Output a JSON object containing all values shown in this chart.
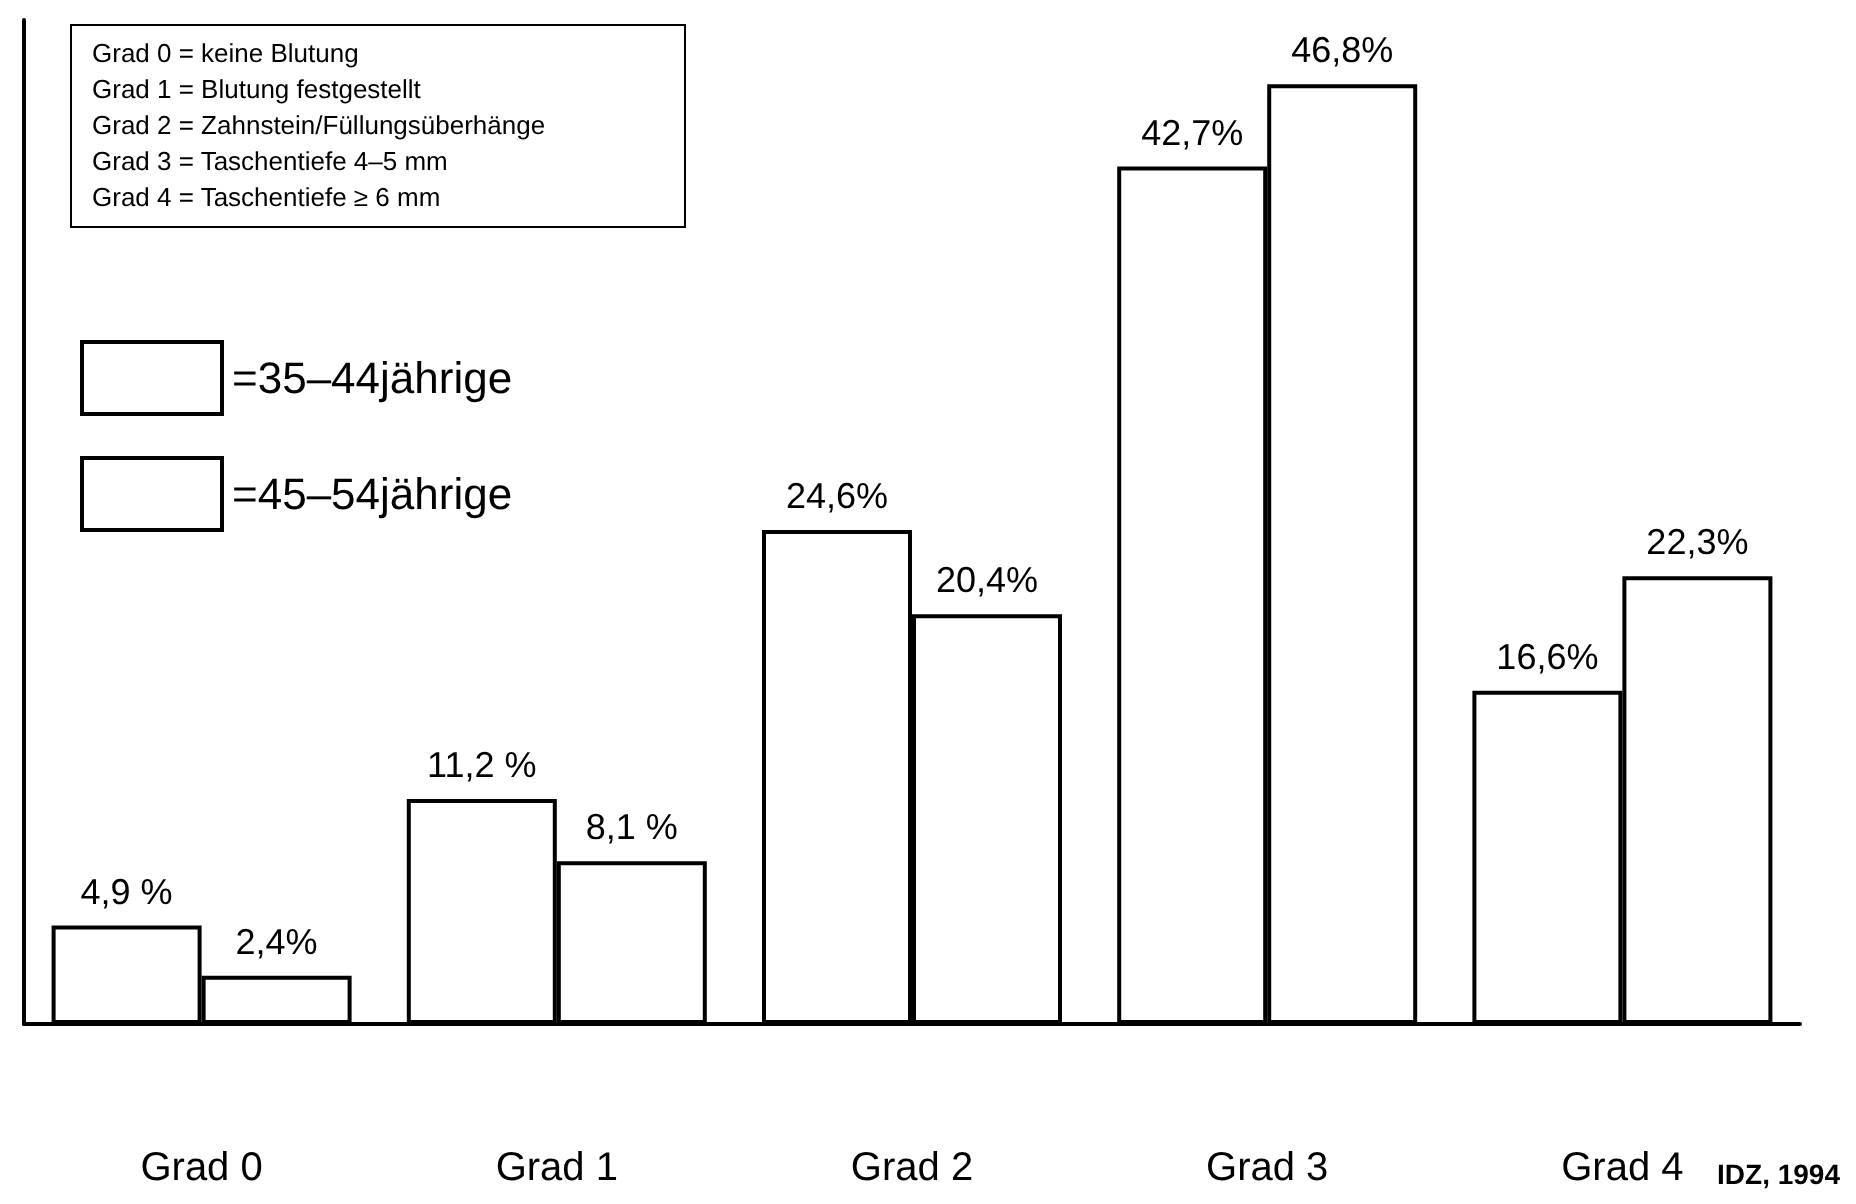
{
  "chart_data": {
    "type": "bar",
    "categories": [
      "Grad 0",
      "Grad 1",
      "Grad 2",
      "Grad 3",
      "Grad 4"
    ],
    "series": [
      {
        "name": "=35–44jährige",
        "color": "#ffffff",
        "values": [
          4.9,
          11.2,
          24.6,
          42.7,
          16.6
        ],
        "value_labels": [
          "4,9 %",
          "11,2 %",
          "24,6%",
          "42,7%",
          "16,6%"
        ]
      },
      {
        "name": "=45–54jährige",
        "color": "#ffffff",
        "values": [
          2.4,
          8.1,
          20.4,
          46.8,
          22.3
        ],
        "value_labels": [
          "2,4%",
          "8,1 %",
          "20,4%",
          "46,8%",
          "22,3%"
        ]
      }
    ],
    "legend": "top left",
    "tick_labels": "x",
    "grid": false,
    "annotations": [
      "Grad 0 = keine Blutung",
      "Grad 1 = Blutung festgestellt",
      "Grad 2 = Zahnstein/Füllungsüberhänge",
      "Grad 3 = Taschentiefe 4–5 mm",
      "Grad 4 = Taschentiefe ≥ 6 mm",
      "IDZ, 1994"
    ]
  }
}
